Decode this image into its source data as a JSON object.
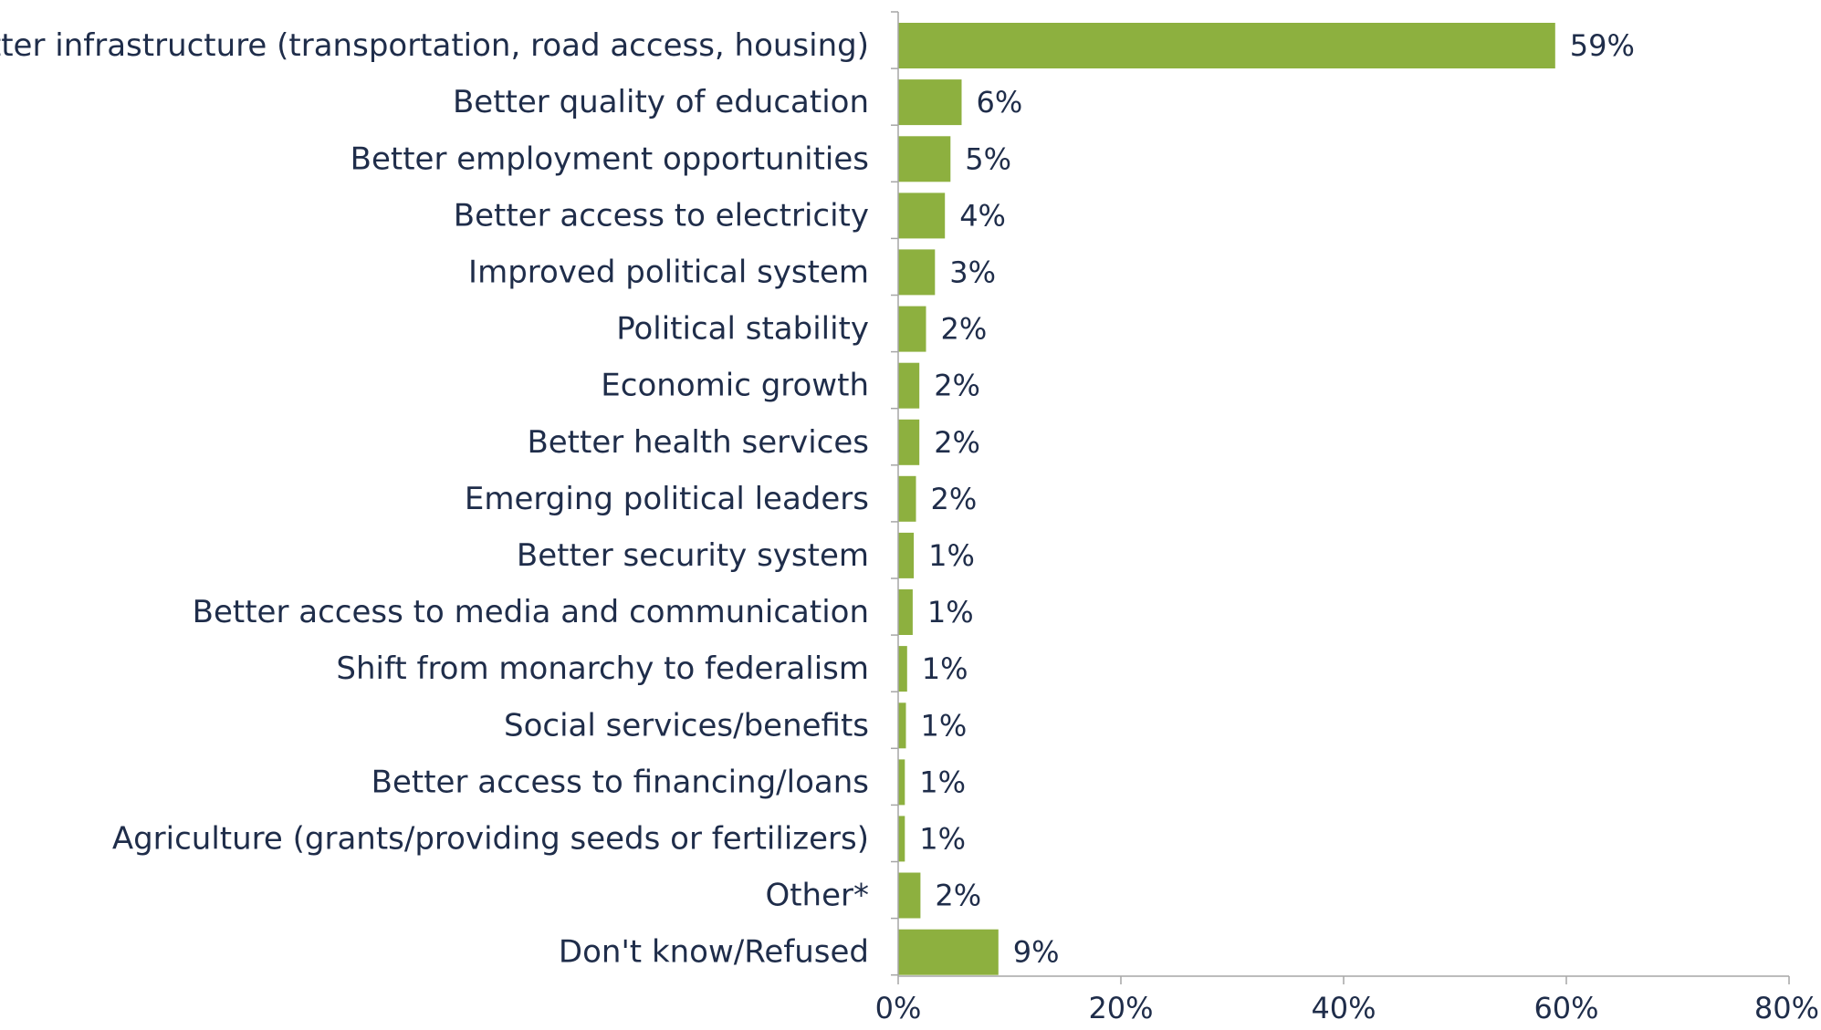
{
  "chart_data": {
    "type": "bar",
    "orientation": "horizontal",
    "categories": [
      "Better infrastructure (transportation, road access, housing)",
      "Better quality of education",
      "Better employment opportunities",
      "Better access to electricity",
      "Improved political system",
      "Political stability",
      "Economic growth",
      "Better health services",
      "Emerging political leaders",
      "Better security system",
      "Better access to media and communication",
      "Shift from monarchy to federalism",
      "Social services/benefits",
      "Better access to financing/loans",
      "Agriculture (grants/providing seeds or fertilizers)",
      "Other*",
      "Don't know/Refused"
    ],
    "values": [
      59,
      6,
      5,
      4,
      3,
      2,
      2,
      2,
      2,
      1,
      1,
      1,
      1,
      1,
      1,
      2,
      9
    ],
    "plotted_values": [
      59,
      5.7,
      4.7,
      4.2,
      3.3,
      2.5,
      1.9,
      1.9,
      1.6,
      1.4,
      1.3,
      0.8,
      0.7,
      0.6,
      0.6,
      2.0,
      9.0
    ],
    "value_labels": [
      "59%",
      "6%",
      "5%",
      "4%",
      "3%",
      "2%",
      "2%",
      "2%",
      "2%",
      "1%",
      "1%",
      "1%",
      "1%",
      "1%",
      "1%",
      "2%",
      "9%"
    ],
    "xlim": [
      0,
      80
    ],
    "xticks": [
      "0%",
      "20%",
      "40%",
      "60%",
      "80%"
    ],
    "title": "",
    "xlabel": "",
    "ylabel": "",
    "grid": false,
    "legend": "none",
    "bar_color": "#8db03f",
    "text_color": "#1f2d4a",
    "axis_color": "#a6a6a6"
  }
}
